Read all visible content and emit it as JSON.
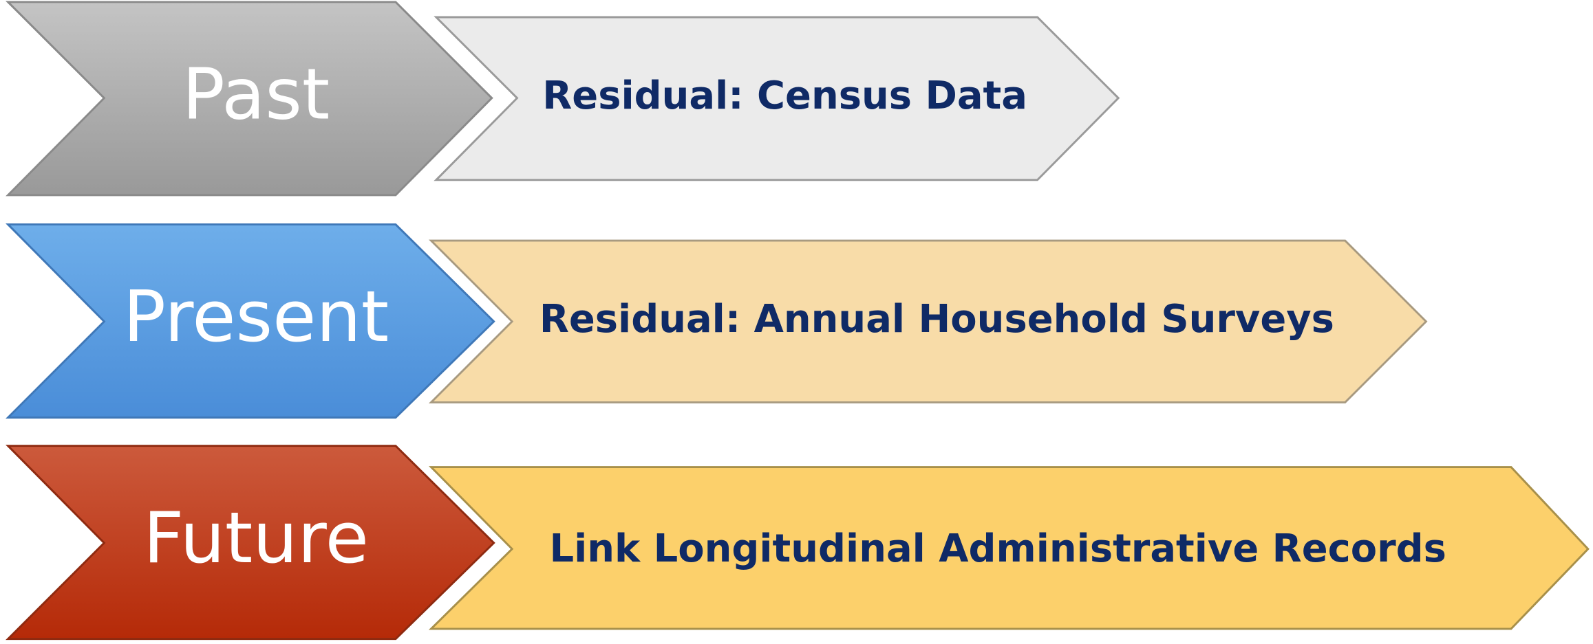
{
  "rows": [
    {
      "label": "Past",
      "description": "Residual:  Census Data"
    },
    {
      "label": "Present",
      "description": "Residual:  Annual Household Surveys"
    },
    {
      "label": "Future",
      "description": "Link Longitudinal Administrative Records"
    }
  ]
}
